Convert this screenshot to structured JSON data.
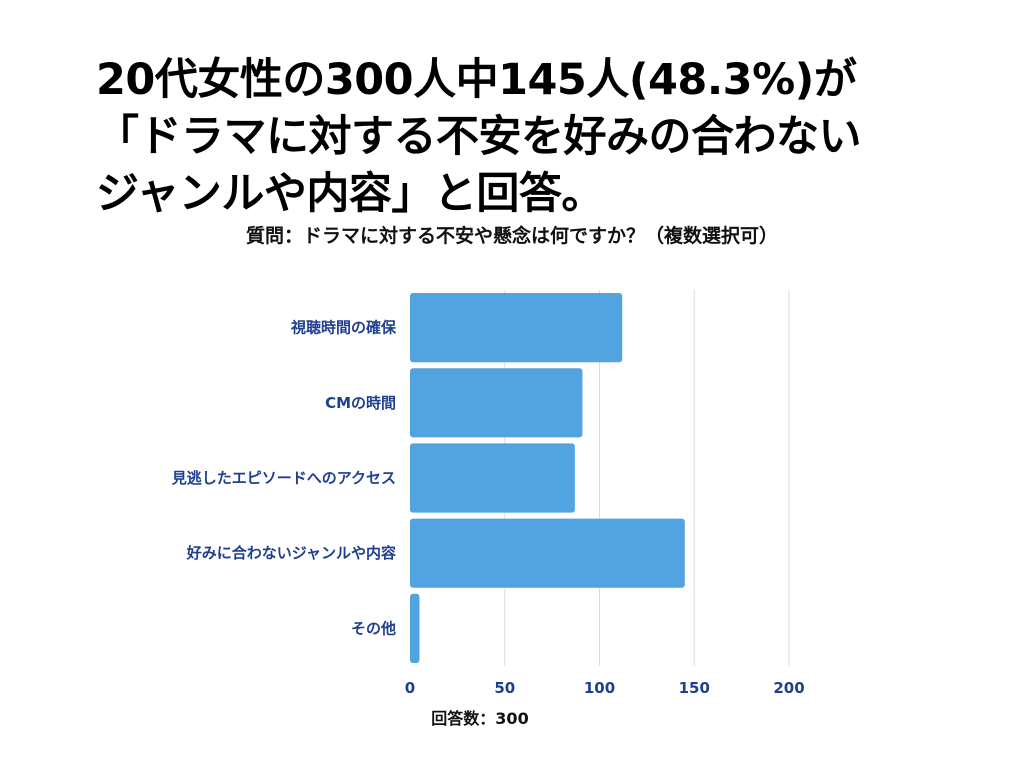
{
  "headline": "20代女性の300人中145人(48.3%)が\n「ドラマに対する不安を好みの合わない\nジャンルや内容」と回答。",
  "chart_data": {
    "type": "bar",
    "orientation": "horizontal",
    "title": "質問：ドラマに対する不安や懸念は何ですか？（複数選択可）",
    "xlabel": "回答数：300",
    "ylabel": "",
    "categories": [
      "視聴時間の確保",
      "CMの時間",
      "見逃したエピソードへのアクセス",
      "好みに合わないジャンルや内容",
      "その他"
    ],
    "values": [
      112,
      91,
      87,
      145,
      5
    ],
    "xlim": [
      0,
      200
    ],
    "ticks": [
      "0",
      "50",
      "100",
      "150",
      "200"
    ],
    "grid": "vertical",
    "bar_color": "#52a4e0",
    "label_color": "#1f3f8f"
  }
}
